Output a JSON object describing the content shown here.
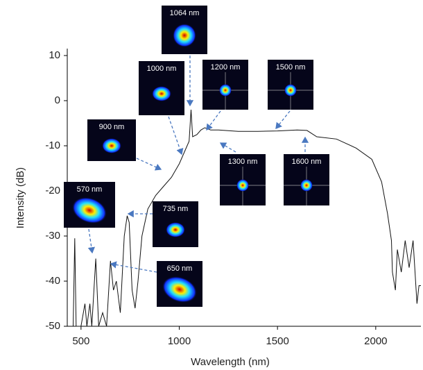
{
  "chart_data": {
    "type": "line",
    "x_label": "Wavelength (nm)",
    "y_label": "Intensity (dB)",
    "x": [
      460,
      468,
      475,
      500,
      520,
      530,
      545,
      555,
      575,
      590,
      610,
      630,
      650,
      665,
      680,
      700,
      720,
      735,
      745,
      760,
      775,
      790,
      810,
      840,
      880,
      920,
      960,
      1000,
      1030,
      1050,
      1060,
      1068,
      1090,
      1110,
      1130,
      1160,
      1200,
      1300,
      1400,
      1500,
      1600,
      1650,
      1700,
      1800,
      1900,
      1980,
      2030,
      2060,
      2080,
      2085,
      2100,
      2110,
      2130,
      2150,
      2170,
      2190,
      2210,
      2220,
      2230
    ],
    "values": [
      -50,
      -30.5,
      -50,
      -50,
      -45,
      -50,
      -45,
      -50,
      -35,
      -50,
      -47,
      -50,
      -35.5,
      -42,
      -40,
      -47,
      -30,
      -25.5,
      -27,
      -42,
      -46,
      -40,
      -30,
      -24,
      -21,
      -19,
      -17,
      -14,
      -11,
      -9,
      -2,
      -8,
      -7.5,
      -6.5,
      -6,
      -6.5,
      -6.5,
      -6.8,
      -6.8,
      -6.7,
      -6.5,
      -6.6,
      -8,
      -8.5,
      -10.5,
      -13,
      -18,
      -25,
      -31,
      -38,
      -42,
      -33,
      -38,
      -31,
      -37,
      -31,
      -45,
      -41,
      -41
    ],
    "color": "#111111",
    "xlim": [
      430,
      2230
    ],
    "xticks": [
      500,
      1000,
      1500,
      2000
    ],
    "ylim": [
      -50,
      10
    ],
    "yticks": [
      10,
      0,
      -10,
      -20,
      -30,
      -40,
      -50
    ],
    "annotations": [
      "1064 nm",
      "1000 nm",
      "1200 nm",
      "1500 nm",
      "900 nm",
      "1300 nm",
      "1600 nm",
      "570 nm",
      "735 nm",
      "650 nm"
    ]
  }
}
